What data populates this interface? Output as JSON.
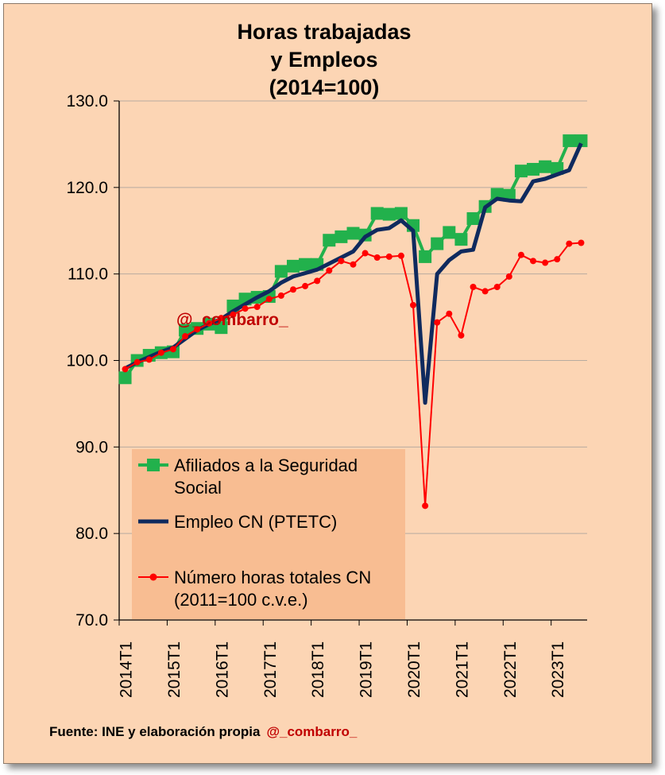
{
  "colors": {
    "background": "#fcd5b4",
    "legend_bg": "#f8bd92",
    "afiliados": "#22b14c",
    "empleo": "#0f2a5e",
    "horas": "#ff0000",
    "watermark": "#c00000"
  },
  "source": {
    "text": "Fuente: INE  y elaboración propia",
    "handle": "@_combarro_"
  },
  "chart_data": {
    "type": "line",
    "title": [
      "Horas trabajadas",
      "y Empleos",
      "(2014=100)"
    ],
    "watermark": "@_combarro_",
    "ylim": [
      70,
      130
    ],
    "yticks": [
      "70.0",
      "80.0",
      "90.0",
      "100.0",
      "110.0",
      "120.0",
      "130.0"
    ],
    "x_tick_labels": [
      "2014T1",
      "2015T1",
      "2016T1",
      "2017T1",
      "2018T1",
      "2019T1",
      "2020T1",
      "2021T1",
      "2022T1",
      "2023T1"
    ],
    "x": [
      "2014T1",
      "2014T2",
      "2014T3",
      "2014T4",
      "2015T1",
      "2015T2",
      "2015T3",
      "2015T4",
      "2016T1",
      "2016T2",
      "2016T3",
      "2016T4",
      "2017T1",
      "2017T2",
      "2017T3",
      "2017T4",
      "2018T1",
      "2018T2",
      "2018T3",
      "2018T4",
      "2019T1",
      "2019T2",
      "2019T3",
      "2019T4",
      "2020T1",
      "2020T2",
      "2020T3",
      "2020T4",
      "2021T1",
      "2021T2",
      "2021T3",
      "2021T4",
      "2022T1",
      "2022T2",
      "2022T3",
      "2022T4",
      "2023T1",
      "2023T2",
      "2023T3"
    ],
    "grid": "horizontal",
    "legend_placement": "bottom-left",
    "series": [
      {
        "name": "Afiliados a la Seguridad Social",
        "legend_lines": [
          "Afiliados a la Seguridad",
          "Social"
        ],
        "color": "#22b14c",
        "marker": "square",
        "values": [
          98.0,
          100.0,
          100.6,
          100.9,
          101.0,
          103.5,
          103.7,
          104.2,
          103.8,
          106.3,
          107.1,
          107.3,
          107.4,
          110.3,
          110.9,
          111.1,
          111.1,
          113.9,
          114.3,
          114.7,
          114.5,
          117.0,
          116.9,
          117.0,
          115.6,
          112.0,
          113.5,
          114.8,
          114.0,
          116.4,
          117.8,
          119.2,
          119.1,
          121.9,
          122.1,
          122.4,
          122.2,
          125.4,
          125.4
        ]
      },
      {
        "name": "Empleo CN (PTETC)",
        "legend_lines": [
          "Empleo CN (PTETC)"
        ],
        "color": "#0f2a5e",
        "marker": "none",
        "values": [
          99.1,
          99.8,
          100.4,
          101.0,
          101.5,
          102.5,
          103.5,
          104.2,
          104.8,
          105.7,
          106.5,
          107.3,
          108.0,
          109.0,
          109.7,
          110.1,
          110.5,
          111.2,
          111.9,
          112.6,
          114.3,
          115.1,
          115.3,
          116.2,
          115.0,
          95.1,
          110.0,
          111.6,
          112.6,
          112.8,
          117.7,
          118.7,
          118.5,
          118.4,
          120.7,
          121.0,
          121.5,
          122.0,
          125.1
        ]
      },
      {
        "name": "Número horas totales CN (2011=100 c.v.e.)",
        "legend_lines": [
          "Número horas totales CN",
          "(2011=100 c.v.e.)"
        ],
        "color": "#ff0000",
        "marker": "circle",
        "values": [
          99.0,
          99.8,
          100.1,
          100.9,
          101.3,
          102.8,
          103.6,
          104.3,
          104.9,
          105.3,
          106.0,
          106.2,
          107.1,
          107.5,
          108.2,
          108.6,
          109.2,
          110.4,
          111.5,
          111.1,
          112.4,
          111.9,
          112.0,
          112.1,
          106.4,
          83.2,
          104.4,
          105.4,
          102.9,
          108.5,
          108.0,
          108.5,
          109.7,
          112.2,
          111.5,
          111.3,
          111.7,
          113.5,
          113.6
        ]
      }
    ]
  }
}
